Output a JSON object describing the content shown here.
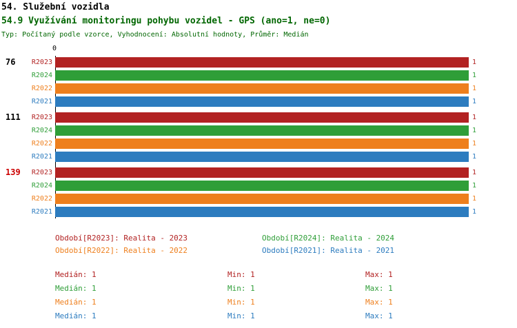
{
  "header": {
    "title": "54. Služební vozidla",
    "subtitle": "54.9 Využívání monitoringu pohybu vozidel - GPS (ano=1, ne=0)",
    "meta": "Typ: Počítaný podle vzorce, Vyhodnocení: Absolutní hodnoty, Průměr: Medián"
  },
  "colors": {
    "red": "#b22222",
    "green": "#2f9e38",
    "orange": "#ee7f1d",
    "blue": "#2d7cbf",
    "title_green": "#006600",
    "id_red": "#cc0000",
    "black": "#000000"
  },
  "chart_data": {
    "type": "bar",
    "orientation": "horizontal",
    "x_origin_label": "0",
    "xlim": [
      0,
      1
    ],
    "series": [
      {
        "name": "R2023",
        "color": "red"
      },
      {
        "name": "R2024",
        "color": "green"
      },
      {
        "name": "R2022",
        "color": "orange"
      },
      {
        "name": "R2021",
        "color": "blue"
      }
    ],
    "groups": [
      {
        "id": "76",
        "id_color": "black",
        "values": [
          1,
          1,
          1,
          1
        ]
      },
      {
        "id": "111",
        "id_color": "black",
        "values": [
          1,
          1,
          1,
          1
        ]
      },
      {
        "id": "139",
        "id_color": "id_red",
        "values": [
          1,
          1,
          1,
          1
        ]
      }
    ]
  },
  "legend": [
    {
      "text": "Období[R2023]: Realita - 2023",
      "color": "red"
    },
    {
      "text": "Období[R2024]: Realita - 2024",
      "color": "green"
    },
    {
      "text": "Období[R2022]: Realita - 2022",
      "color": "orange"
    },
    {
      "text": "Období[R2021]: Realita - 2021",
      "color": "blue"
    }
  ],
  "stats": [
    {
      "color": "red",
      "median": "Medián: 1",
      "min": "Min: 1",
      "max": "Max: 1"
    },
    {
      "color": "green",
      "median": "Medián: 1",
      "min": "Min: 1",
      "max": "Max: 1"
    },
    {
      "color": "orange",
      "median": "Medián: 1",
      "min": "Min: 1",
      "max": "Max: 1"
    },
    {
      "color": "blue",
      "median": "Medián: 1",
      "min": "Min: 1",
      "max": "Max: 1"
    }
  ]
}
